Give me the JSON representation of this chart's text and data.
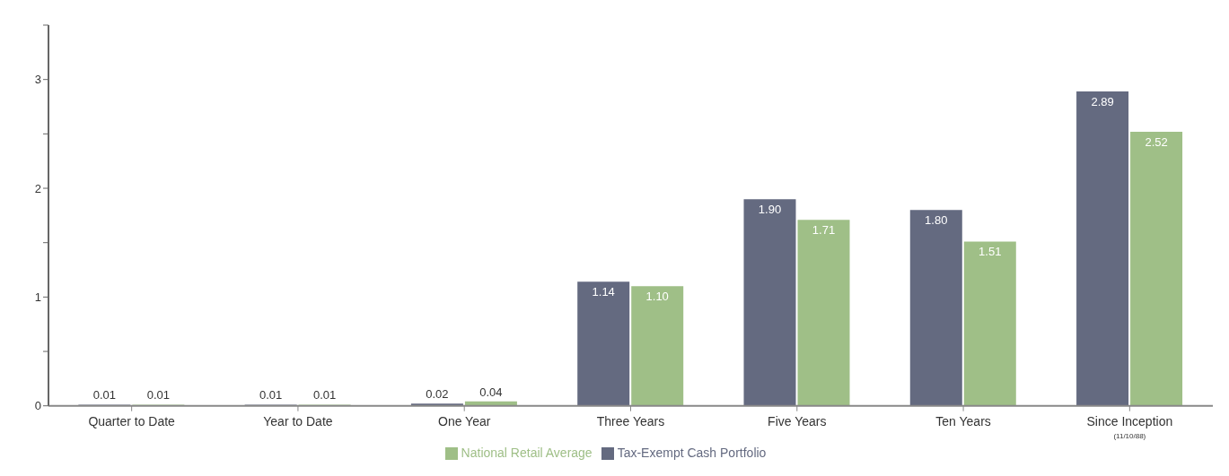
{
  "chart_data": {
    "type": "bar",
    "categories": [
      "Quarter to Date",
      "Year to Date",
      "One Year",
      "Three Years",
      "Five Years",
      "Ten Years",
      "Since Inception\n(11/10/88)"
    ],
    "series": [
      {
        "name": "Tax-Exempt Cash Portfolio",
        "color": "#646a80",
        "values": [
          0.01,
          0.01,
          0.02,
          1.14,
          1.9,
          1.8,
          2.89
        ],
        "value_labels": [
          "0.01",
          "0.01",
          "0.02",
          "1.14",
          "1.90",
          "1.80",
          "2.89"
        ]
      },
      {
        "name": "National Retail Average",
        "color": "#9fbf87",
        "values": [
          0.01,
          0.01,
          0.04,
          1.1,
          1.71,
          1.51,
          2.52
        ],
        "value_labels": [
          "0.01",
          "0.01",
          "0.04",
          "1.10",
          "1.71",
          "1.51",
          "2.52"
        ]
      }
    ],
    "ylim": [
      0,
      3.5
    ],
    "yticks": [
      0,
      {
        "value": 0.5,
        "label": null
      },
      1,
      {
        "value": 1.5,
        "label": null
      },
      2,
      {
        "value": 2.5,
        "label": null
      },
      3,
      {
        "value": 3.5,
        "label": null
      }
    ],
    "grid": false,
    "legend": "bottom"
  }
}
